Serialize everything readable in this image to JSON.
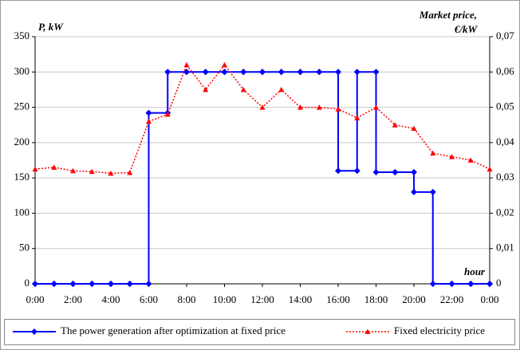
{
  "chart_data": {
    "type": "line",
    "y_label": "P, kW",
    "y2_label": [
      "Market price,",
      "€/kW"
    ],
    "x_label": "hour",
    "x": [
      0,
      1,
      2,
      3,
      4,
      5,
      6,
      7,
      8,
      9,
      10,
      11,
      12,
      13,
      14,
      15,
      16,
      17,
      18,
      19,
      20,
      21,
      22,
      23,
      24
    ],
    "xlim": [
      0,
      24
    ],
    "xticks": [
      {
        "value": 0,
        "label": "0:00"
      },
      {
        "value": 2,
        "label": "2:00"
      },
      {
        "value": 4,
        "label": "4:00"
      },
      {
        "value": 6,
        "label": "6:00"
      },
      {
        "value": 8,
        "label": "8:00"
      },
      {
        "value": 10,
        "label": "10:00"
      },
      {
        "value": 12,
        "label": "12:00"
      },
      {
        "value": 14,
        "label": "14:00"
      },
      {
        "value": 16,
        "label": "16:00"
      },
      {
        "value": 18,
        "label": "18:00"
      },
      {
        "value": 20,
        "label": "20:00"
      },
      {
        "value": 22,
        "label": "22:00"
      },
      {
        "value": 24,
        "label": "0:00"
      }
    ],
    "ylim": [
      0,
      350
    ],
    "yticks": [
      0,
      50,
      100,
      150,
      200,
      250,
      300,
      350
    ],
    "y2lim": [
      0,
      0.07
    ],
    "y2ticks": [
      0,
      {
        "value": 0.01,
        "label": "0,01"
      },
      {
        "value": 0.02,
        "label": "0,02"
      },
      {
        "value": 0.03,
        "label": "0,03"
      },
      {
        "value": 0.04,
        "label": "0,04"
      },
      {
        "value": 0.05,
        "label": "0,05"
      },
      {
        "value": 0.06,
        "label": "0,06"
      },
      {
        "value": 0.07,
        "label": "0,07"
      }
    ],
    "grid": true,
    "legend": "bottom",
    "series": [
      {
        "name": "The power generation after optimization at fixed price",
        "color": "#0000ff",
        "step": true,
        "values": [
          0,
          0,
          0,
          0,
          0,
          0,
          242,
          300,
          300,
          300,
          300,
          300,
          300,
          300,
          300,
          300,
          160,
          300,
          158,
          158,
          130,
          0,
          0,
          0,
          0
        ]
      },
      {
        "name": "Fixed electricity price",
        "color": "#ff0000",
        "axis": "y2",
        "values": [
          0.0325,
          0.033,
          0.032,
          0.0318,
          0.0313,
          0.0315,
          0.046,
          0.048,
          0.062,
          0.055,
          0.062,
          0.055,
          0.05,
          0.055,
          0.05,
          0.05,
          0.0495,
          0.047,
          0.05,
          0.045,
          0.044,
          0.037,
          0.036,
          0.035,
          0.0325
        ]
      }
    ]
  }
}
